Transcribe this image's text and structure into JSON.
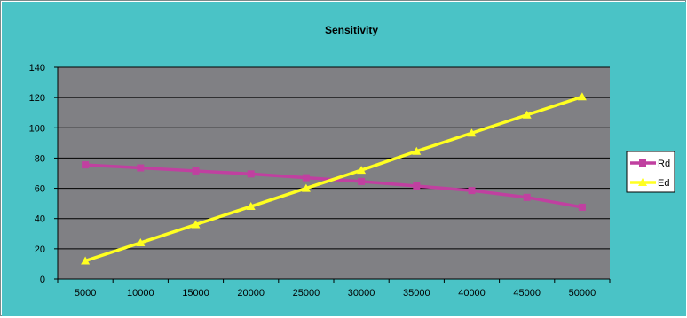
{
  "chart_data": {
    "type": "line",
    "title": "Sensitivity",
    "xlabel": "",
    "ylabel": "",
    "categories": [
      "5000",
      "10000",
      "15000",
      "20000",
      "25000",
      "30000",
      "35000",
      "40000",
      "45000",
      "50000"
    ],
    "series": [
      {
        "name": "Rd",
        "marker": "square",
        "values": [
          75.5,
          73.5,
          71.5,
          69.5,
          67,
          64.5,
          61.5,
          58.5,
          54,
          47.5
        ]
      },
      {
        "name": "Ed",
        "marker": "triangle",
        "values": [
          12,
          24,
          36,
          48,
          60,
          72,
          84.5,
          96.5,
          108.5,
          120.5
        ]
      }
    ],
    "ylim": [
      0,
      140
    ],
    "yticks": [
      0,
      20,
      40,
      60,
      80,
      100,
      120,
      140
    ],
    "grid": "horizontal",
    "legend": "right"
  },
  "colors": {
    "chart_background": "#4ac3c6",
    "plot_background": "#808084",
    "gridline": "#000000",
    "Rd": "#c040a0",
    "Ed": "#ffff20"
  }
}
